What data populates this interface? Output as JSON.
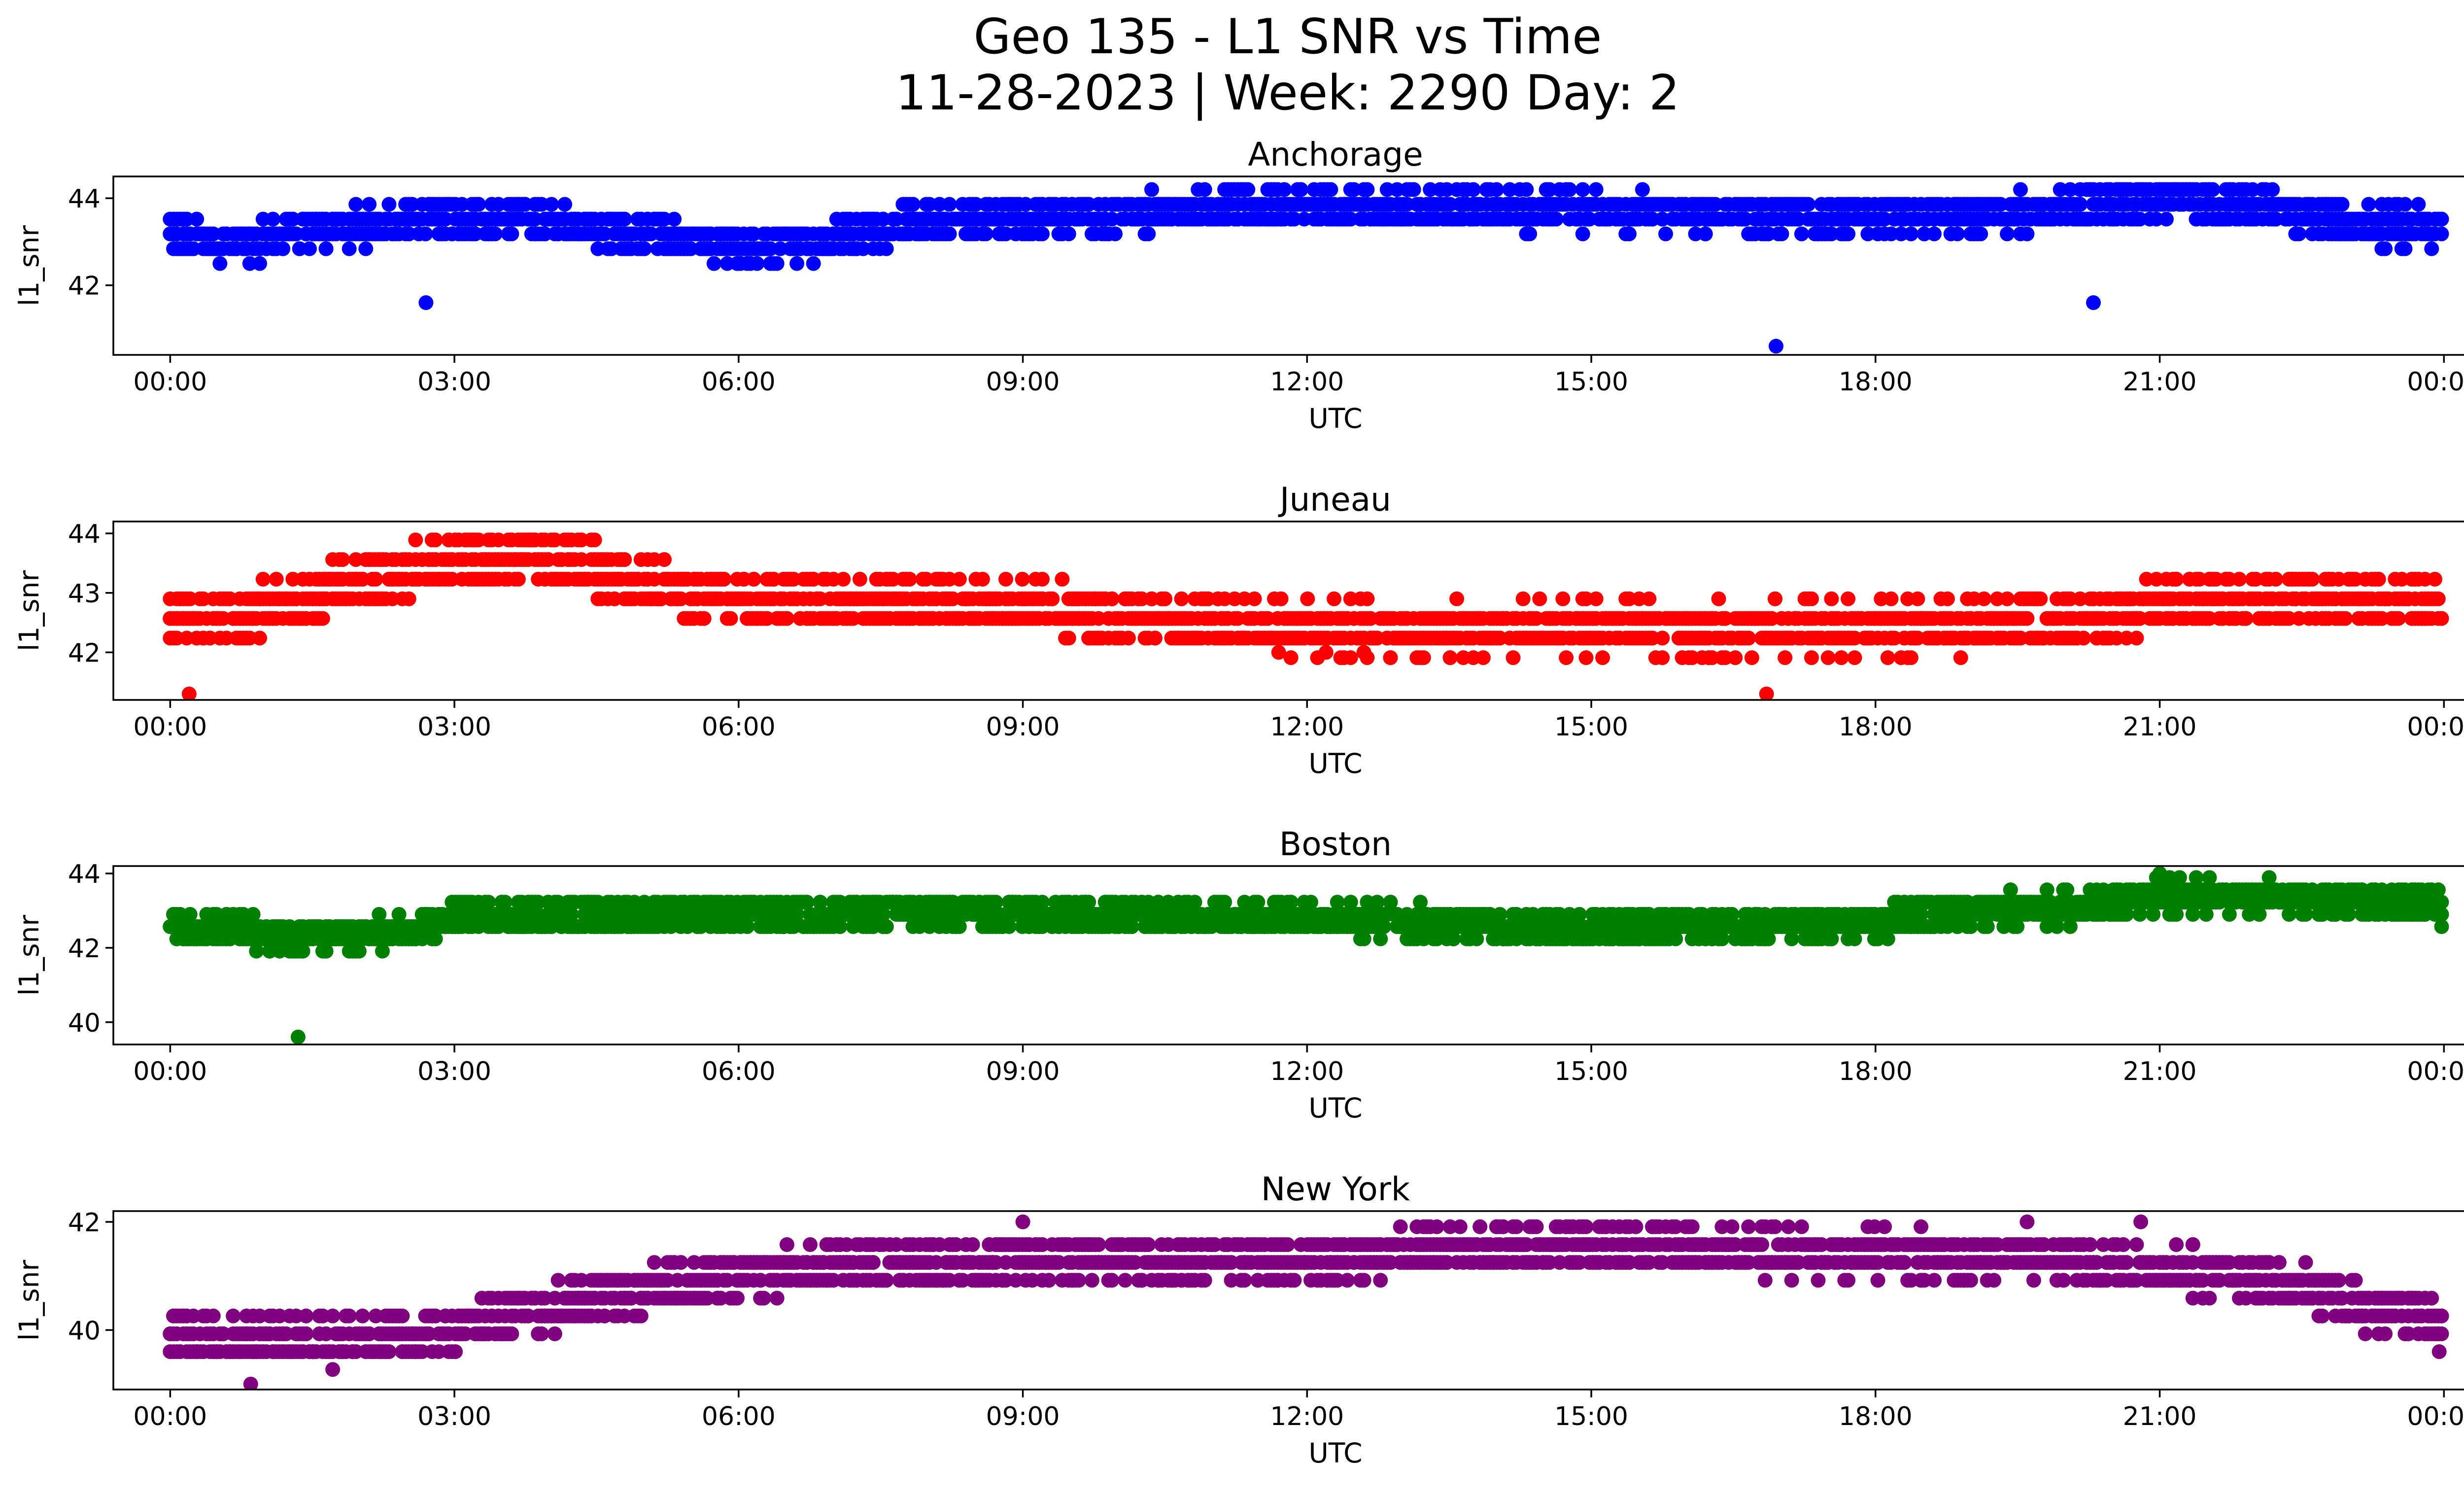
{
  "figure": {
    "title_line1": "Geo 135 - L1 SNR vs Time",
    "title_line2": "11-28-2023 | Week: 2290 Day: 2"
  },
  "chart_data": [
    {
      "type": "scatter",
      "title": "Anchorage",
      "xlabel": "UTC",
      "ylabel": "l1_snr",
      "color": "#0000ff",
      "x_ticks": [
        "00:00",
        "03:00",
        "06:00",
        "09:00",
        "12:00",
        "15:00",
        "18:00",
        "21:00",
        "00:00"
      ],
      "xlim": [
        -0.6,
        25.2
      ],
      "y_ticks": [
        42,
        44
      ],
      "ylim": [
        40.4,
        44.5
      ],
      "outliers": [
        [
          2.7,
          41.6
        ],
        [
          16.95,
          40.6
        ],
        [
          20.3,
          41.6
        ]
      ],
      "trend": [
        {
          "t": 0.0,
          "base": 43.2
        },
        {
          "t": 0.7,
          "base": 42.9
        },
        {
          "t": 1.3,
          "base": 43.2
        },
        {
          "t": 2.3,
          "base": 43.4
        },
        {
          "t": 3.2,
          "base": 43.6
        },
        {
          "t": 4.0,
          "base": 43.5
        },
        {
          "t": 5.0,
          "base": 43.1
        },
        {
          "t": 5.5,
          "base": 43.0
        },
        {
          "t": 6.3,
          "base": 42.9
        },
        {
          "t": 7.0,
          "base": 43.1
        },
        {
          "t": 7.7,
          "base": 43.4
        },
        {
          "t": 9.0,
          "base": 43.6
        },
        {
          "t": 12.0,
          "base": 43.8
        },
        {
          "t": 15.0,
          "base": 43.7
        },
        {
          "t": 18.0,
          "base": 43.6
        },
        {
          "t": 20.0,
          "base": 43.7
        },
        {
          "t": 21.0,
          "base": 44.0
        },
        {
          "t": 22.0,
          "base": 43.8
        },
        {
          "t": 23.0,
          "base": 43.4
        },
        {
          "t": 24.0,
          "base": 43.3
        }
      ],
      "quant": 0.34,
      "spread": 0.75
    },
    {
      "type": "scatter",
      "title": "Juneau",
      "xlabel": "UTC",
      "ylabel": "l1_snr",
      "color": "#ff0000",
      "x_ticks": [
        "00:00",
        "03:00",
        "06:00",
        "09:00",
        "12:00",
        "15:00",
        "18:00",
        "21:00",
        "00:00"
      ],
      "xlim": [
        -0.6,
        25.2
      ],
      "y_ticks": [
        42,
        43,
        44
      ],
      "ylim": [
        41.2,
        44.2
      ],
      "outliers": [
        [
          0.2,
          41.3
        ],
        [
          16.85,
          41.3
        ],
        [
          11.7,
          42.0
        ],
        [
          12.2,
          42.0
        ],
        [
          12.6,
          42.0
        ]
      ],
      "trend": [
        {
          "t": 0.0,
          "base": 42.6
        },
        {
          "t": 1.0,
          "base": 42.7
        },
        {
          "t": 1.8,
          "base": 43.1
        },
        {
          "t": 2.5,
          "base": 43.4
        },
        {
          "t": 3.2,
          "base": 43.6
        },
        {
          "t": 3.8,
          "base": 43.7
        },
        {
          "t": 4.5,
          "base": 43.4
        },
        {
          "t": 5.0,
          "base": 43.1
        },
        {
          "t": 6.0,
          "base": 42.9
        },
        {
          "t": 9.0,
          "base": 42.8
        },
        {
          "t": 10.0,
          "base": 42.6
        },
        {
          "t": 12.0,
          "base": 42.4
        },
        {
          "t": 15.0,
          "base": 42.4
        },
        {
          "t": 18.0,
          "base": 42.4
        },
        {
          "t": 20.0,
          "base": 42.5
        },
        {
          "t": 21.0,
          "base": 42.8
        },
        {
          "t": 22.5,
          "base": 42.9
        },
        {
          "t": 24.0,
          "base": 42.8
        }
      ],
      "quant": 0.33,
      "spread": 0.75
    },
    {
      "type": "scatter",
      "title": "Boston",
      "xlabel": "UTC",
      "ylabel": "l1_snr",
      "color": "#008000",
      "x_ticks": [
        "00:00",
        "03:00",
        "06:00",
        "09:00",
        "12:00",
        "15:00",
        "18:00",
        "21:00",
        "00:00"
      ],
      "xlim": [
        -0.6,
        25.2
      ],
      "y_ticks": [
        40,
        42,
        44
      ],
      "ylim": [
        39.4,
        44.2
      ],
      "outliers": [
        [
          1.35,
          39.6
        ],
        [
          21.0,
          44.0
        ]
      ],
      "trend": [
        {
          "t": 0.0,
          "base": 42.6
        },
        {
          "t": 0.7,
          "base": 42.4
        },
        {
          "t": 1.5,
          "base": 42.3
        },
        {
          "t": 2.6,
          "base": 42.4
        },
        {
          "t": 3.0,
          "base": 42.8
        },
        {
          "t": 6.0,
          "base": 42.9
        },
        {
          "t": 9.0,
          "base": 43.0
        },
        {
          "t": 12.0,
          "base": 42.8
        },
        {
          "t": 15.0,
          "base": 42.5
        },
        {
          "t": 17.5,
          "base": 42.6
        },
        {
          "t": 18.6,
          "base": 42.9
        },
        {
          "t": 20.0,
          "base": 43.1
        },
        {
          "t": 21.0,
          "base": 43.4
        },
        {
          "t": 23.0,
          "base": 43.3
        },
        {
          "t": 24.0,
          "base": 43.1
        }
      ],
      "quant": 0.33,
      "spread": 0.8
    },
    {
      "type": "scatter",
      "title": "New York",
      "xlabel": "UTC",
      "ylabel": "l1_snr",
      "color": "#800080",
      "x_ticks": [
        "00:00",
        "03:00",
        "06:00",
        "09:00",
        "12:00",
        "15:00",
        "18:00",
        "21:00",
        "00:00"
      ],
      "xlim": [
        -0.6,
        25.2
      ],
      "y_ticks": [
        40,
        42
      ],
      "ylim": [
        38.9,
        42.2
      ],
      "outliers": [
        [
          0.85,
          39.0
        ],
        [
          9.0,
          42.0
        ],
        [
          23.95,
          39.6
        ],
        [
          19.6,
          42.0
        ],
        [
          20.8,
          42.0
        ]
      ],
      "trend": [
        {
          "t": 0.0,
          "base": 39.9
        },
        {
          "t": 1.0,
          "base": 39.8
        },
        {
          "t": 2.0,
          "base": 39.8
        },
        {
          "t": 3.0,
          "base": 40.0
        },
        {
          "t": 3.5,
          "base": 40.2
        },
        {
          "t": 4.0,
          "base": 40.4
        },
        {
          "t": 4.8,
          "base": 40.7
        },
        {
          "t": 6.0,
          "base": 41.0
        },
        {
          "t": 7.0,
          "base": 41.2
        },
        {
          "t": 9.0,
          "base": 41.3
        },
        {
          "t": 12.0,
          "base": 41.3
        },
        {
          "t": 14.0,
          "base": 41.5
        },
        {
          "t": 15.0,
          "base": 41.6
        },
        {
          "t": 16.0,
          "base": 41.5
        },
        {
          "t": 18.0,
          "base": 41.4
        },
        {
          "t": 20.0,
          "base": 41.3
        },
        {
          "t": 21.5,
          "base": 41.1
        },
        {
          "t": 22.5,
          "base": 40.8
        },
        {
          "t": 23.2,
          "base": 40.4
        },
        {
          "t": 24.0,
          "base": 40.1
        }
      ],
      "quant": 0.33,
      "spread": 0.75
    }
  ]
}
